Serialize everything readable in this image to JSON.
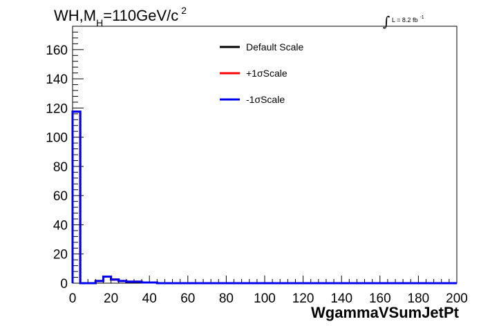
{
  "chart_data": {
    "type": "histogram",
    "title": {
      "prefix": "WH,M",
      "subscript": "H",
      "suffix": "=110GeV/c",
      "superscript": "2"
    },
    "lumi": {
      "integral": "∫",
      "text": "L = 8.2 fb",
      "superscript": "-1"
    },
    "xlabel": "WgammaVSumJetPt",
    "ylabel": "",
    "xlim": [
      0,
      200
    ],
    "ylim": [
      0,
      176
    ],
    "x_ticks": [
      0,
      20,
      40,
      60,
      80,
      100,
      120,
      140,
      160,
      180,
      200
    ],
    "y_ticks": [
      0,
      20,
      40,
      60,
      80,
      100,
      120,
      140,
      160
    ],
    "bin_edges": [
      0,
      4,
      8,
      12,
      16,
      20,
      24,
      28,
      32,
      36,
      40,
      44,
      48,
      200
    ],
    "series": [
      {
        "name": "Default Scale",
        "color": "#000000",
        "values": [
          117.5,
          0,
          0,
          1.5,
          4.5,
          2.5,
          1.5,
          1,
          1,
          0.5,
          0.5,
          0,
          0
        ]
      },
      {
        "name": "+1σScale",
        "color": "#ff0000",
        "values": [
          117.5,
          0,
          0,
          1.5,
          4.5,
          2.5,
          1.5,
          1,
          1,
          0.5,
          0.5,
          0,
          0
        ]
      },
      {
        "name": "-1σScale",
        "color": "#0000ee",
        "values": [
          117.5,
          0,
          0,
          1.5,
          4.5,
          2.5,
          1.5,
          1,
          1,
          0.5,
          0.5,
          0,
          0
        ]
      }
    ],
    "legend": {
      "position": "top-center"
    },
    "grid": false
  }
}
